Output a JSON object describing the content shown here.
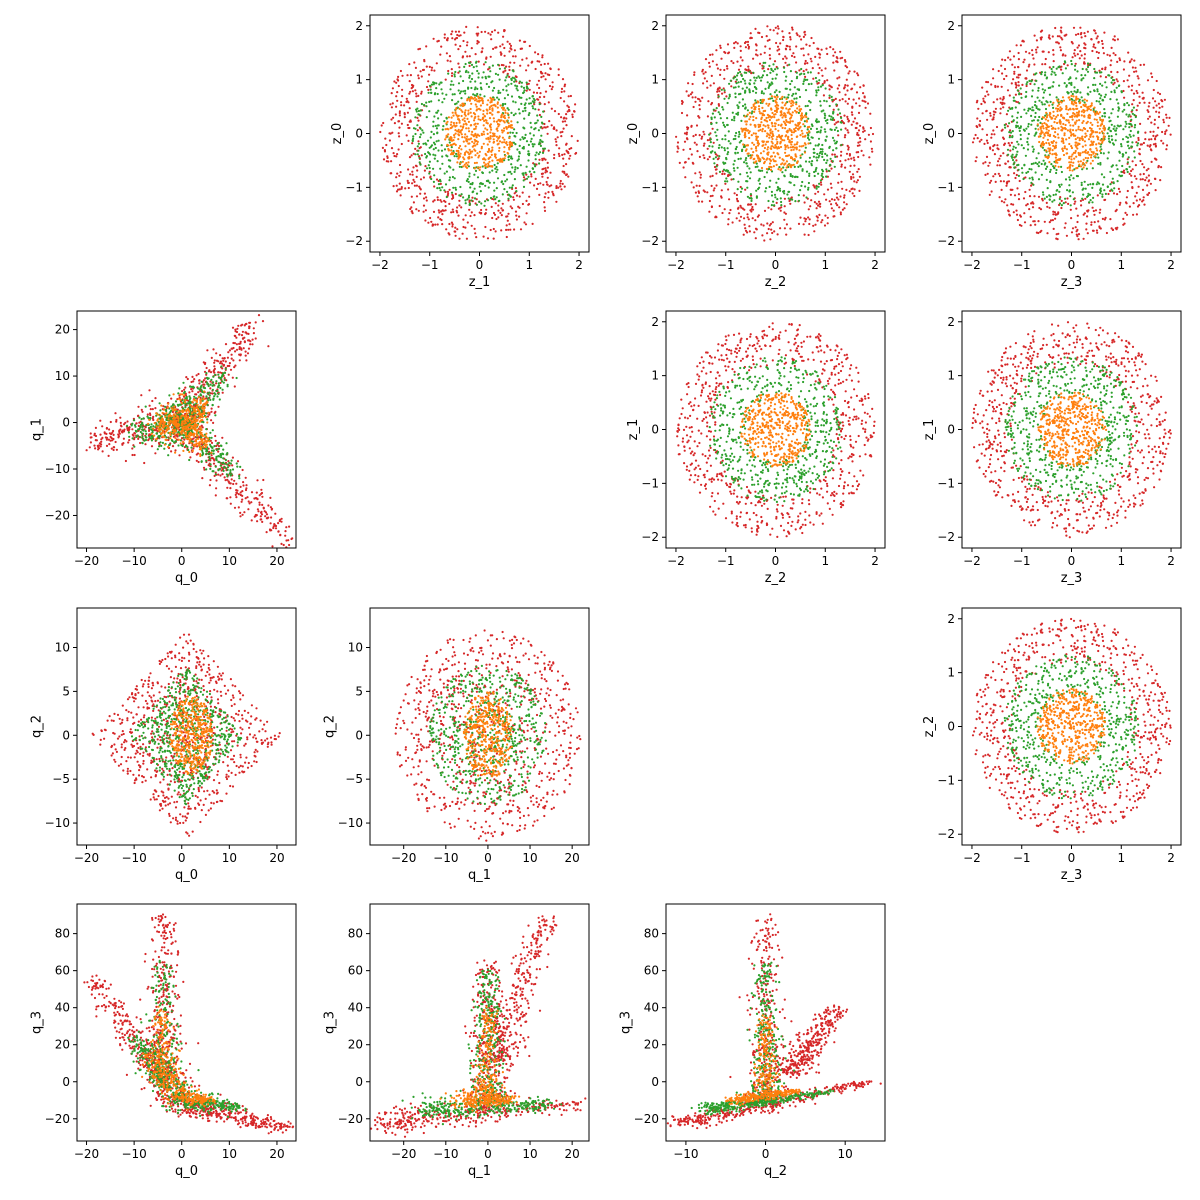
{
  "figure": {
    "type": "scatter-matrix",
    "series_colors": {
      "red": "#d62728",
      "green": "#2ca02c",
      "orange": "#ff7f0e"
    }
  },
  "chart_data": [
    {
      "type": "scatter",
      "id": "z1-z0",
      "xlabel": "z_1",
      "ylabel": "z_0",
      "xlim": [
        -2.2,
        2.2
      ],
      "ylim": [
        -2.2,
        2.2
      ],
      "xticks": [
        -2,
        -1,
        0,
        1,
        2
      ],
      "yticks": [
        -2,
        -1,
        0,
        1,
        2
      ],
      "series": [
        {
          "color": "#d62728",
          "shape": "annulus",
          "r_in": 1.2,
          "r_out": 2.0,
          "n": 700
        },
        {
          "color": "#2ca02c",
          "shape": "annulus",
          "r_in": 0.6,
          "r_out": 1.35,
          "n": 550
        },
        {
          "color": "#ff7f0e",
          "shape": "disk",
          "r_in": 0.0,
          "r_out": 0.7,
          "n": 450
        }
      ]
    },
    {
      "type": "scatter",
      "id": "z2-z0",
      "xlabel": "z_2",
      "ylabel": "z_0",
      "xlim": [
        -2.2,
        2.2
      ],
      "ylim": [
        -2.2,
        2.2
      ],
      "xticks": [
        -2,
        -1,
        0,
        1,
        2
      ],
      "yticks": [
        -2,
        -1,
        0,
        1,
        2
      ],
      "series": [
        {
          "color": "#d62728",
          "shape": "annulus",
          "r_in": 1.2,
          "r_out": 2.0,
          "n": 700
        },
        {
          "color": "#2ca02c",
          "shape": "annulus",
          "r_in": 0.6,
          "r_out": 1.35,
          "n": 550
        },
        {
          "color": "#ff7f0e",
          "shape": "disk",
          "r_in": 0.0,
          "r_out": 0.7,
          "n": 450
        }
      ]
    },
    {
      "type": "scatter",
      "id": "z3-z0",
      "xlabel": "z_3",
      "ylabel": "z_0",
      "xlim": [
        -2.2,
        2.2
      ],
      "ylim": [
        -2.2,
        2.2
      ],
      "xticks": [
        -2,
        -1,
        0,
        1,
        2
      ],
      "yticks": [
        -2,
        -1,
        0,
        1,
        2
      ],
      "series": [
        {
          "color": "#d62728",
          "shape": "annulus",
          "r_in": 1.2,
          "r_out": 2.0,
          "n": 700
        },
        {
          "color": "#2ca02c",
          "shape": "annulus",
          "r_in": 0.6,
          "r_out": 1.35,
          "n": 550
        },
        {
          "color": "#ff7f0e",
          "shape": "disk",
          "r_in": 0.0,
          "r_out": 0.7,
          "n": 450
        }
      ]
    },
    {
      "type": "scatter",
      "id": "q0-q1",
      "xlabel": "q_0",
      "ylabel": "q_1",
      "xlim": [
        -22,
        24
      ],
      "ylim": [
        -27,
        24
      ],
      "xticks": [
        -20,
        -10,
        0,
        10,
        20
      ],
      "yticks": [
        -20,
        -10,
        0,
        10,
        20
      ],
      "series": [
        {
          "color": "#d62728",
          "shape": "arms",
          "arms": [
            [
              [
                0,
                0
              ],
              [
                15,
                21
              ]
            ],
            [
              [
                0,
                0
              ],
              [
                -19,
                -4
              ]
            ],
            [
              [
                0,
                0
              ],
              [
                22,
                -25
              ]
            ]
          ],
          "spread": 2.2,
          "n": 900
        },
        {
          "color": "#2ca02c",
          "shape": "arms",
          "arms": [
            [
              [
                0,
                0
              ],
              [
                9,
                10
              ]
            ],
            [
              [
                0,
                0
              ],
              [
                -10,
                -2
              ]
            ],
            [
              [
                0,
                0
              ],
              [
                11,
                -11
              ]
            ]
          ],
          "spread": 2.0,
          "n": 600
        },
        {
          "color": "#ff7f0e",
          "shape": "arms",
          "arms": [
            [
              [
                0,
                0
              ],
              [
                5,
                4
              ]
            ],
            [
              [
                0,
                0
              ],
              [
                -5,
                -1
              ]
            ],
            [
              [
                0,
                0
              ],
              [
                5,
                -5
              ]
            ]
          ],
          "spread": 1.8,
          "n": 400
        }
      ]
    },
    {
      "type": "scatter",
      "id": "z2-z1",
      "xlabel": "z_2",
      "ylabel": "z_1",
      "xlim": [
        -2.2,
        2.2
      ],
      "ylim": [
        -2.2,
        2.2
      ],
      "xticks": [
        -2,
        -1,
        0,
        1,
        2
      ],
      "yticks": [
        -2,
        -1,
        0,
        1,
        2
      ],
      "series": [
        {
          "color": "#d62728",
          "shape": "annulus",
          "r_in": 1.2,
          "r_out": 2.0,
          "n": 700
        },
        {
          "color": "#2ca02c",
          "shape": "annulus",
          "r_in": 0.6,
          "r_out": 1.35,
          "n": 550
        },
        {
          "color": "#ff7f0e",
          "shape": "disk",
          "r_in": 0.0,
          "r_out": 0.7,
          "n": 450
        }
      ]
    },
    {
      "type": "scatter",
      "id": "z3-z1",
      "xlabel": "z_3",
      "ylabel": "z_1",
      "xlim": [
        -2.2,
        2.2
      ],
      "ylim": [
        -2.2,
        2.2
      ],
      "xticks": [
        -2,
        -1,
        0,
        1,
        2
      ],
      "yticks": [
        -2,
        -1,
        0,
        1,
        2
      ],
      "series": [
        {
          "color": "#d62728",
          "shape": "annulus",
          "r_in": 1.2,
          "r_out": 2.0,
          "n": 700
        },
        {
          "color": "#2ca02c",
          "shape": "annulus",
          "r_in": 0.6,
          "r_out": 1.35,
          "n": 550
        },
        {
          "color": "#ff7f0e",
          "shape": "disk",
          "r_in": 0.0,
          "r_out": 0.7,
          "n": 450
        }
      ]
    },
    {
      "type": "scatter",
      "id": "q0-q2",
      "xlabel": "q_0",
      "ylabel": "q_2",
      "xlim": [
        -22,
        24
      ],
      "ylim": [
        -12.5,
        14.5
      ],
      "xticks": [
        -20,
        -10,
        0,
        10,
        20
      ],
      "yticks": [
        -10,
        -5,
        0,
        5,
        10
      ],
      "series": [
        {
          "color": "#d62728",
          "shape": "diamond",
          "cx": 1,
          "cy": 0,
          "rx": 20,
          "ry": 12,
          "n": 800
        },
        {
          "color": "#2ca02c",
          "shape": "diamond",
          "cx": 1,
          "cy": 0,
          "rx": 12,
          "ry": 8,
          "n": 600
        },
        {
          "color": "#ff7f0e",
          "shape": "ellipse",
          "cx": 2,
          "cy": 0,
          "rx": 4.5,
          "ry": 4.5,
          "n": 400
        }
      ]
    },
    {
      "type": "scatter",
      "id": "q1-q2",
      "xlabel": "q_1",
      "ylabel": "q_2",
      "xlim": [
        -28,
        24
      ],
      "ylim": [
        -12.5,
        14.5
      ],
      "xticks": [
        -20,
        -10,
        0,
        10,
        20
      ],
      "yticks": [
        -10,
        -5,
        0,
        5,
        10
      ],
      "series": [
        {
          "color": "#d62728",
          "shape": "ellipse",
          "cx": 0,
          "cy": 0,
          "rx": 22,
          "ry": 12,
          "n": 800
        },
        {
          "color": "#2ca02c",
          "shape": "ellipse",
          "cx": 0,
          "cy": 0,
          "rx": 14,
          "ry": 8,
          "n": 600
        },
        {
          "color": "#ff7f0e",
          "shape": "ellipse",
          "cx": 0,
          "cy": 0,
          "rx": 6,
          "ry": 5,
          "n": 400
        }
      ]
    },
    {
      "type": "scatter",
      "id": "z3-z2",
      "xlabel": "z_3",
      "ylabel": "z_2",
      "xlim": [
        -2.2,
        2.2
      ],
      "ylim": [
        -2.2,
        2.2
      ],
      "xticks": [
        -2,
        -1,
        0,
        1,
        2
      ],
      "yticks": [
        -2,
        -1,
        0,
        1,
        2
      ],
      "series": [
        {
          "color": "#d62728",
          "shape": "annulus",
          "r_in": 1.2,
          "r_out": 2.0,
          "n": 700
        },
        {
          "color": "#2ca02c",
          "shape": "annulus",
          "r_in": 0.6,
          "r_out": 1.35,
          "n": 550
        },
        {
          "color": "#ff7f0e",
          "shape": "disk",
          "r_in": 0.0,
          "r_out": 0.7,
          "n": 450
        }
      ]
    },
    {
      "type": "scatter",
      "id": "q0-q3",
      "xlabel": "q_0",
      "ylabel": "q_3",
      "xlim": [
        -22,
        24
      ],
      "ylim": [
        -32,
        96
      ],
      "xticks": [
        -20,
        -10,
        0,
        10,
        20
      ],
      "yticks": [
        -20,
        0,
        20,
        40,
        60,
        80
      ],
      "series": [
        {
          "color": "#d62728",
          "shape": "arms",
          "arms": [
            [
              [
                0,
                -12
              ],
              [
                -19,
                56
              ]
            ],
            [
              [
                -4,
                0
              ],
              [
                -4,
                90
              ]
            ],
            [
              [
                0,
                -12
              ],
              [
                22,
                -25
              ]
            ]
          ],
          "spread": 2.5,
          "n": 1000
        },
        {
          "color": "#2ca02c",
          "shape": "arms",
          "arms": [
            [
              [
                0,
                -10
              ],
              [
                -10,
                25
              ]
            ],
            [
              [
                -4,
                0
              ],
              [
                -4,
                65
              ]
            ],
            [
              [
                0,
                -10
              ],
              [
                12,
                -14
              ]
            ]
          ],
          "spread": 2.2,
          "n": 600
        },
        {
          "color": "#ff7f0e",
          "shape": "arms",
          "arms": [
            [
              [
                0,
                -8
              ],
              [
                -7,
                15
              ]
            ],
            [
              [
                -4,
                0
              ],
              [
                -4,
                40
              ]
            ],
            [
              [
                0,
                -8
              ],
              [
                6,
                -10
              ]
            ]
          ],
          "spread": 1.8,
          "n": 400
        }
      ]
    },
    {
      "type": "scatter",
      "id": "q1-q3",
      "xlabel": "q_1",
      "ylabel": "q_3",
      "xlim": [
        -28,
        24
      ],
      "ylim": [
        -32,
        96
      ],
      "xticks": [
        -20,
        -10,
        0,
        10,
        20
      ],
      "yticks": [
        -20,
        0,
        20,
        40,
        60,
        80
      ],
      "series": [
        {
          "color": "#d62728",
          "shape": "arms",
          "arms": [
            [
              [
                -25,
                -22
              ],
              [
                22,
                -12
              ]
            ],
            [
              [
                0,
                -15
              ],
              [
                0,
                65
              ]
            ],
            [
              [
                2,
                10
              ],
              [
                14,
                90
              ]
            ]
          ],
          "spread": 2.8,
          "n": 1000
        },
        {
          "color": "#2ca02c",
          "shape": "arms",
          "arms": [
            [
              [
                -15,
                -15
              ],
              [
                15,
                -12
              ]
            ],
            [
              [
                0,
                -10
              ],
              [
                0,
                60
              ]
            ]
          ],
          "spread": 2.4,
          "n": 600
        },
        {
          "color": "#ff7f0e",
          "shape": "arms",
          "arms": [
            [
              [
                -6,
                -10
              ],
              [
                6,
                -10
              ]
            ],
            [
              [
                0,
                -8
              ],
              [
                0,
                40
              ]
            ]
          ],
          "spread": 1.8,
          "n": 400
        }
      ]
    },
    {
      "type": "scatter",
      "id": "q2-q3",
      "xlabel": "q_2",
      "ylabel": "q_3",
      "xlim": [
        -12.5,
        15
      ],
      "ylim": [
        -32,
        96
      ],
      "xticks": [
        -10,
        0,
        10
      ],
      "yticks": [
        -20,
        0,
        20,
        40,
        60,
        80
      ],
      "series": [
        {
          "color": "#d62728",
          "shape": "arms",
          "arms": [
            [
              [
                -10,
                -22
              ],
              [
                13,
                0
              ]
            ],
            [
              [
                0,
                -15
              ],
              [
                0,
                90
              ]
            ],
            [
              [
                3,
                5
              ],
              [
                9,
                40
              ]
            ]
          ],
          "spread": 1.4,
          "n": 1000
        },
        {
          "color": "#2ca02c",
          "shape": "arms",
          "arms": [
            [
              [
                -7,
                -15
              ],
              [
                8,
                -5
              ]
            ],
            [
              [
                0,
                -10
              ],
              [
                0,
                65
              ]
            ]
          ],
          "spread": 1.2,
          "n": 600
        },
        {
          "color": "#ff7f0e",
          "shape": "arms",
          "arms": [
            [
              [
                -4,
                -10
              ],
              [
                4,
                -5
              ]
            ],
            [
              [
                0,
                -8
              ],
              [
                0,
                35
              ]
            ]
          ],
          "spread": 0.9,
          "n": 400
        }
      ]
    }
  ]
}
